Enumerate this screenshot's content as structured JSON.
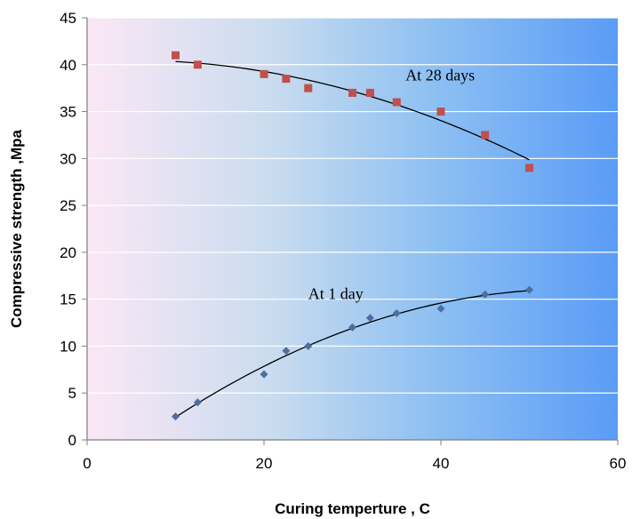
{
  "chart_data": {
    "type": "scatter",
    "title": "",
    "xlabel": "Curing temperture , C",
    "ylabel": "Compressive strength ,Mpa",
    "xlim": [
      0,
      60
    ],
    "ylim": [
      0,
      45
    ],
    "xticks": [
      "0",
      "20",
      "40",
      "60"
    ],
    "yticks": [
      "0",
      "5",
      "10",
      "15",
      "20",
      "25",
      "30",
      "35",
      "40",
      "45"
    ],
    "grid": "horizontal",
    "background": "gradient pink to blue",
    "series": [
      {
        "name": "At 28 days",
        "marker": "square",
        "color": "#c0504d",
        "x": [
          10,
          12.5,
          20,
          22.5,
          25,
          30,
          32,
          35,
          40,
          45,
          50
        ],
        "y": [
          41,
          40,
          39,
          38.5,
          37.5,
          37,
          37,
          36,
          35,
          32.5,
          29
        ],
        "trendline": "polynomial"
      },
      {
        "name": "At 1 day",
        "marker": "diamond",
        "color": "#4f6d9a",
        "x": [
          10,
          12.5,
          20,
          22.5,
          25,
          30,
          32,
          35,
          40,
          45,
          50
        ],
        "y": [
          2.5,
          4,
          7,
          9.5,
          10,
          12,
          13,
          13.5,
          14,
          15.5,
          16
        ],
        "trendline": "polynomial"
      }
    ],
    "annotations": [
      {
        "text": "At 28 days",
        "x": 36,
        "y": 38.3
      },
      {
        "text": "At 1 day",
        "x": 25,
        "y": 15
      }
    ]
  }
}
